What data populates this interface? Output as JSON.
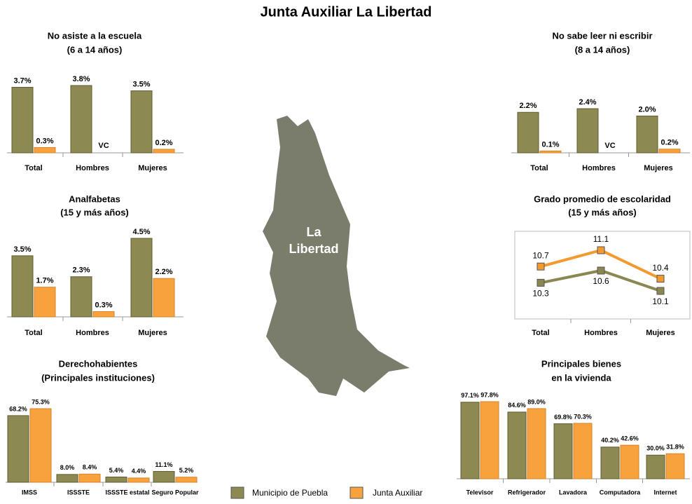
{
  "title": "Junta Auxiliar La Libertad",
  "map_label": [
    "La",
    "Libertad"
  ],
  "chart_data": [
    {
      "type": "bar",
      "title": "No asiste a la escuela",
      "subtitle": "(6 a 14 años)",
      "categories": [
        "Total",
        "Hombres",
        "Mujeres"
      ],
      "series": [
        {
          "name": "Municipio de Puebla",
          "color": "#8c8a52",
          "values": [
            3.7,
            3.8,
            3.5
          ],
          "value_labels": [
            "3.7%",
            "3.8%",
            "3.5%"
          ]
        },
        {
          "name": "Junta Auxiliar",
          "color": "#f7a23c",
          "values": [
            0.3,
            null,
            0.2
          ],
          "value_labels": [
            "0.3%",
            "VC",
            "0.2%"
          ]
        }
      ]
    },
    {
      "type": "bar",
      "title": "No sabe leer ni escribir",
      "subtitle": "(8 a 14 años)",
      "categories": [
        "Total",
        "Hombres",
        "Mujeres"
      ],
      "series": [
        {
          "name": "Municipio de Puebla",
          "color": "#8c8a52",
          "values": [
            2.2,
            2.4,
            2.0
          ],
          "value_labels": [
            "2.2%",
            "2.4%",
            "2.0%"
          ]
        },
        {
          "name": "Junta Auxiliar",
          "color": "#f7a23c",
          "values": [
            0.1,
            null,
            0.2
          ],
          "value_labels": [
            "0.1%",
            "VC",
            "0.2%"
          ]
        }
      ]
    },
    {
      "type": "bar",
      "title": "Analfabetas",
      "subtitle": "(15 y más años)",
      "categories": [
        "Total",
        "Hombres",
        "Mujeres"
      ],
      "series": [
        {
          "name": "Municipio de Puebla",
          "color": "#8c8a52",
          "values": [
            3.5,
            2.3,
            4.5
          ],
          "value_labels": [
            "3.5%",
            "2.3%",
            "4.5%"
          ]
        },
        {
          "name": "Junta Auxiliar",
          "color": "#f7a23c",
          "values": [
            1.7,
            0.3,
            2.2
          ],
          "value_labels": [
            "1.7%",
            "0.3%",
            "2.2%"
          ]
        }
      ]
    },
    {
      "type": "line",
      "title": "Grado promedio de escolaridad",
      "subtitle": "(15 y más años)",
      "categories": [
        "Total",
        "Hombres",
        "Mujeres"
      ],
      "series": [
        {
          "name": "Municipio de Puebla",
          "color": "#8a8750",
          "values": [
            10.3,
            10.6,
            10.1
          ]
        },
        {
          "name": "Junta Auxiliar",
          "color": "#f39a2e",
          "values": [
            10.7,
            11.1,
            10.4
          ]
        }
      ]
    },
    {
      "type": "bar",
      "title": "Derechohabientes",
      "subtitle": "(Principales instituciones)",
      "categories": [
        "IMSS",
        "ISSSTE",
        "ISSSTE estatal",
        "Seguro Popular"
      ],
      "series": [
        {
          "name": "Municipio de Puebla",
          "color": "#8c8a52",
          "values": [
            68.2,
            8.0,
            5.4,
            11.1
          ],
          "value_labels": [
            "68.2%",
            "8.0%",
            "5.4%",
            "11.1%"
          ]
        },
        {
          "name": "Junta Auxiliar",
          "color": "#f7a23c",
          "values": [
            75.3,
            8.4,
            4.4,
            5.2
          ],
          "value_labels": [
            "75.3%",
            "8.4%",
            "4.4%",
            "5.2%"
          ]
        }
      ]
    },
    {
      "type": "bar",
      "title": "Principales bienes",
      "subtitle": "en la vivienda",
      "categories": [
        "Televisor",
        "Refrigerador",
        "Lavadora",
        "Computadora",
        "Internet"
      ],
      "series": [
        {
          "name": "Municipio de Puebla",
          "color": "#8c8a52",
          "values": [
            97.1,
            84.6,
            69.8,
            40.2,
            30.0
          ],
          "value_labels": [
            "97.1%",
            "84.6%",
            "69.8%",
            "40.2%",
            "30.0%"
          ]
        },
        {
          "name": "Junta Auxiliar",
          "color": "#f7a23c",
          "values": [
            97.8,
            89.0,
            70.3,
            42.6,
            31.8
          ],
          "value_labels": [
            "97.8%",
            "89.0%",
            "70.3%",
            "42.6%",
            "31.8%"
          ]
        }
      ]
    }
  ]
}
